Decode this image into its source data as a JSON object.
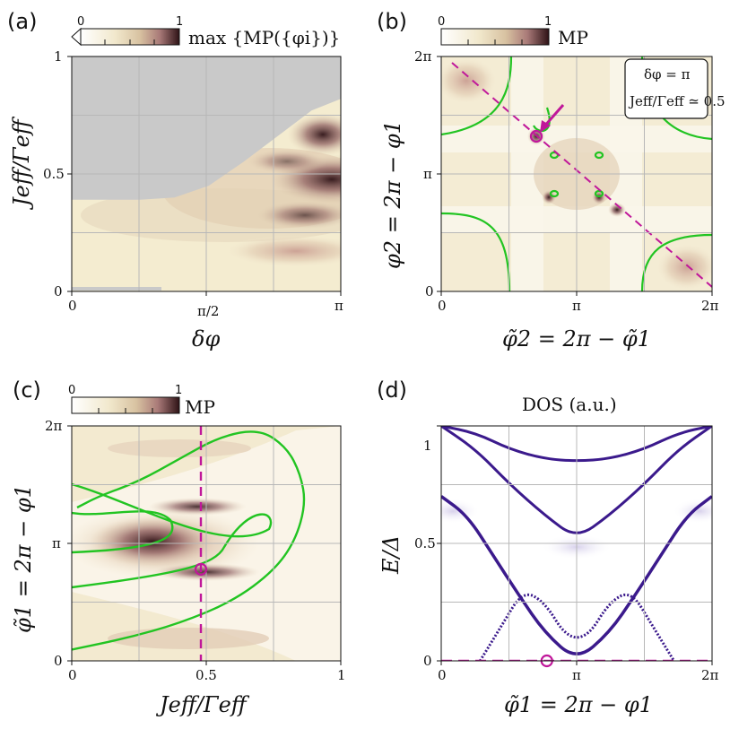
{
  "colors": {
    "bg": "#ffffff",
    "gray_region": "#c9c9c9",
    "cmap_low": "#fbf7ea",
    "cmap_mid": "#dcc9a6",
    "cmap_high": "#3a1a1c",
    "green": "#22c422",
    "magenta": "#c0179a",
    "purple": "#3b1a8c"
  },
  "chart_data": [
    {
      "panel": "(a)",
      "type": "heatmap",
      "colorbar": {
        "label": "max {MP({φi})}",
        "min_label": "0",
        "max_label": "1"
      },
      "xlabel": "δφ",
      "ylabel": "Jeff/Γeff",
      "xticks": [
        "0",
        "π/2",
        "π"
      ],
      "yticks": [
        "0",
        "0.5",
        "1"
      ],
      "xlim": [
        0,
        3.1416
      ],
      "ylim": [
        0,
        1
      ],
      "gray_region_boundary": {
        "x": [
          0,
          0.4,
          0.8,
          1.2,
          1.6,
          2.0,
          2.4,
          2.8,
          3.1416
        ],
        "y": [
          0.39,
          0.39,
          0.39,
          0.4,
          0.45,
          0.55,
          0.66,
          0.77,
          0.82
        ]
      },
      "hot_spots": [
        {
          "x": 3.14,
          "y": 0.47,
          "value": 1.0
        },
        {
          "x": 3.05,
          "y": 0.7,
          "value": 0.85
        },
        {
          "x": 2.8,
          "y": 0.55,
          "value": 0.7
        },
        {
          "x": 3.0,
          "y": 0.3,
          "value": 0.6
        }
      ]
    },
    {
      "panel": "(b)",
      "type": "heatmap",
      "colorbar": {
        "label": "MP",
        "min_label": "0",
        "max_label": "1"
      },
      "xlabel": "φ̃2 = 2π − φ̃1",
      "ylabel": "φ2 = 2π − φ1",
      "xticks": [
        "0",
        "π",
        "2π"
      ],
      "yticks": [
        "0",
        "π",
        "2π"
      ],
      "annotation": [
        "δφ = π",
        "Jeff/Γeff ≃ 0.5"
      ],
      "marker_point": {
        "x": 2.4,
        "y": 3.9
      },
      "hot_spots": [
        {
          "x": 0.4,
          "y": 5.85,
          "value": 0.5
        },
        {
          "x": 5.9,
          "y": 0.45,
          "value": 0.5
        },
        {
          "x": 2.4,
          "y": 3.9,
          "value": 1.0
        },
        {
          "x": 2.75,
          "y": 2.5,
          "value": 0.9
        },
        {
          "x": 4.2,
          "y": 2.5,
          "value": 0.9
        },
        {
          "x": 4.5,
          "y": 2.1,
          "value": 0.8
        }
      ]
    },
    {
      "panel": "(c)",
      "type": "heatmap",
      "colorbar": {
        "label": "MP",
        "min_label": "0",
        "max_label": "1"
      },
      "xlabel": "Jeff/Γeff",
      "ylabel": "φ̃1 = 2π − φ1",
      "xticks": [
        "0",
        "0.5",
        "1"
      ],
      "yticks": [
        "0",
        "π",
        "2π"
      ],
      "xlim": [
        0,
        1
      ],
      "ylim": [
        0,
        6.2832
      ],
      "dashed_x": 0.48,
      "marker_point": {
        "x": 0.48,
        "y": 2.45
      },
      "green_curve": {
        "x": [
          0,
          0.2,
          0.4,
          0.6,
          0.75,
          0.83,
          0.87,
          0.85,
          0.8,
          0.7,
          0.55,
          0.4,
          0.25,
          0.1,
          0.02
        ],
        "y": [
          0.3,
          0.6,
          1.0,
          1.6,
          2.4,
          3.2,
          4.2,
          5.0,
          5.7,
          6.2,
          6.0,
          5.4,
          4.8,
          4.4,
          4.1
        ]
      }
    },
    {
      "panel": "(d)",
      "type": "line",
      "title": "DOS (a.u.)",
      "xlabel": "φ̃1 = 2π − φ1",
      "ylabel": "E/Δ",
      "xticks": [
        "0",
        "π",
        "2π"
      ],
      "yticks": [
        "0",
        "0.5",
        "1"
      ],
      "xlim": [
        0,
        6.2832
      ],
      "ylim": [
        0,
        1
      ],
      "marker_point": {
        "x": 2.45,
        "y": 0
      },
      "series": [
        {
          "name": "band1",
          "x": [
            0,
            0.8,
            1.6,
            2.4,
            3.14,
            3.9,
            4.7,
            5.5,
            6.28
          ],
          "y": [
            1.0,
            0.97,
            0.9,
            0.86,
            0.85,
            0.86,
            0.9,
            0.97,
            1.0
          ]
        },
        {
          "name": "band2",
          "x": [
            0,
            0.6,
            1.2,
            1.8,
            2.4,
            3.14,
            3.9,
            4.5,
            5.1,
            5.7,
            6.28
          ],
          "y": [
            0.7,
            0.62,
            0.45,
            0.28,
            0.12,
            0.0,
            0.12,
            0.28,
            0.45,
            0.62,
            0.7
          ]
        },
        {
          "name": "band3",
          "x": [
            0,
            0.8,
            1.6,
            2.4,
            3.14,
            3.9,
            4.7,
            5.5,
            6.28
          ],
          "y": [
            1.0,
            0.9,
            0.75,
            0.62,
            0.52,
            0.62,
            0.75,
            0.9,
            1.0
          ]
        },
        {
          "name": "band4",
          "x": [
            0.9,
            1.4,
            1.9,
            2.4,
            2.9,
            3.4,
            3.9,
            4.4,
            4.9,
            5.4
          ],
          "y": [
            0.0,
            0.15,
            0.3,
            0.25,
            0.1,
            0.1,
            0.25,
            0.3,
            0.15,
            0.0
          ]
        }
      ]
    }
  ],
  "panels": {
    "a": {
      "label": "(a)"
    },
    "b": {
      "label": "(b)"
    },
    "c": {
      "label": "(c)"
    },
    "d": {
      "label": "(d)"
    }
  }
}
